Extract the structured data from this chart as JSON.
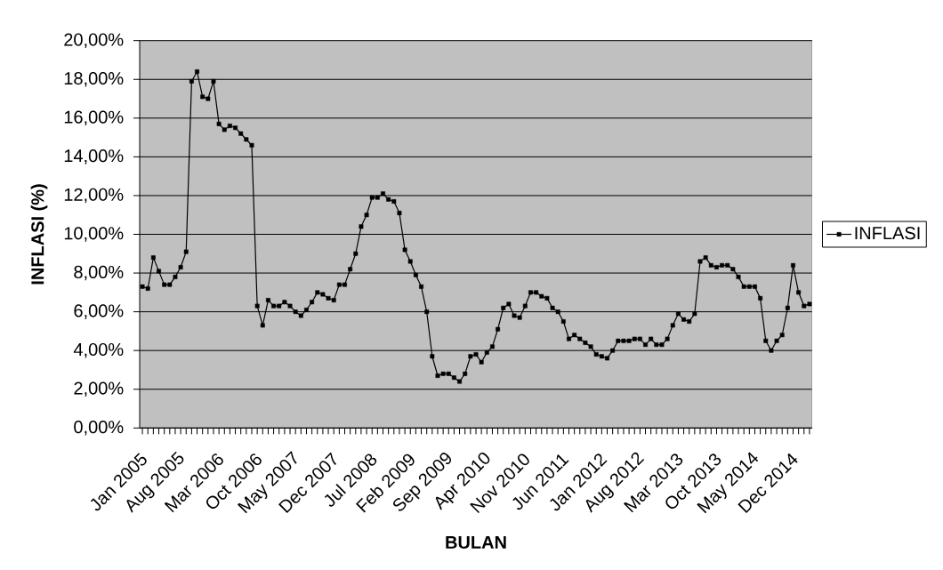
{
  "chart_data": {
    "type": "line",
    "xlabel": "BULAN",
    "ylabel": "INFLASI (%)",
    "categories": [
      "Jan 2005",
      null,
      null,
      null,
      null,
      null,
      null,
      "Aug 2005",
      null,
      null,
      null,
      null,
      null,
      null,
      "Mar 2006",
      null,
      null,
      null,
      null,
      null,
      null,
      "Oct 2006",
      null,
      null,
      null,
      null,
      null,
      null,
      "May 2007",
      null,
      null,
      null,
      null,
      null,
      null,
      "Dec 2007",
      null,
      null,
      null,
      null,
      null,
      null,
      "Jul 2008",
      null,
      null,
      null,
      null,
      null,
      null,
      "Feb 2009",
      null,
      null,
      null,
      null,
      null,
      null,
      "Sep 2009",
      null,
      null,
      null,
      null,
      null,
      null,
      "Apr 2010",
      null,
      null,
      null,
      null,
      null,
      null,
      "Nov 2010",
      null,
      null,
      null,
      null,
      null,
      null,
      "Jun 2011",
      null,
      null,
      null,
      null,
      null,
      null,
      "Jan 2012",
      null,
      null,
      null,
      null,
      null,
      null,
      "Aug 2012",
      null,
      null,
      null,
      null,
      null,
      null,
      "Mar 2013",
      null,
      null,
      null,
      null,
      null,
      null,
      "Oct 2013",
      null,
      null,
      null,
      null,
      null,
      null,
      "May 2014",
      null,
      null,
      null,
      null,
      null,
      null,
      "Dec 2014",
      null,
      null,
      null
    ],
    "series": [
      {
        "name": "INFLASI",
        "color": "#000000",
        "values": [
          7.3,
          7.2,
          8.8,
          8.1,
          7.4,
          7.4,
          7.8,
          8.3,
          9.1,
          17.9,
          18.4,
          17.1,
          17.0,
          17.9,
          15.7,
          15.4,
          15.6,
          15.5,
          15.2,
          14.9,
          14.6,
          6.3,
          5.3,
          6.6,
          6.3,
          6.3,
          6.5,
          6.3,
          6.0,
          5.8,
          6.1,
          6.5,
          7.0,
          6.9,
          6.7,
          6.6,
          7.4,
          7.4,
          8.2,
          9.0,
          10.4,
          11.0,
          11.9,
          11.9,
          12.1,
          11.8,
          11.7,
          11.1,
          9.2,
          8.6,
          7.9,
          7.3,
          6.0,
          3.7,
          2.7,
          2.8,
          2.8,
          2.6,
          2.4,
          2.8,
          3.7,
          3.8,
          3.4,
          3.9,
          4.2,
          5.1,
          6.2,
          6.4,
          5.8,
          5.7,
          6.3,
          7.0,
          7.0,
          6.8,
          6.7,
          6.2,
          6.0,
          5.5,
          4.6,
          4.8,
          4.6,
          4.4,
          4.2,
          3.8,
          3.7,
          3.6,
          4.0,
          4.5,
          4.5,
          4.5,
          4.6,
          4.6,
          4.3,
          4.6,
          4.3,
          4.3,
          4.6,
          5.3,
          5.9,
          5.6,
          5.5,
          5.9,
          8.6,
          8.8,
          8.4,
          8.3,
          8.4,
          8.4,
          8.2,
          7.8,
          7.3,
          7.3,
          7.3,
          6.7,
          4.5,
          4.0,
          4.5,
          4.8,
          6.2,
          8.4,
          7.0,
          6.3,
          6.4
        ]
      }
    ],
    "ylim": [
      0,
      20
    ],
    "yticks": [
      {
        "value": 0,
        "label": "0,00%"
      },
      {
        "value": 2,
        "label": "2,00%"
      },
      {
        "value": 4,
        "label": "4,00%"
      },
      {
        "value": 6,
        "label": "6,00%"
      },
      {
        "value": 8,
        "label": "8,00%"
      },
      {
        "value": 10,
        "label": "10,00%"
      },
      {
        "value": 12,
        "label": "12,00%"
      },
      {
        "value": 14,
        "label": "14,00%"
      },
      {
        "value": 16,
        "label": "16,00%"
      },
      {
        "value": 18,
        "label": "18,00%"
      },
      {
        "value": 20,
        "label": "20,00%"
      }
    ],
    "grid": "y",
    "legend": "right",
    "marker": "square",
    "line_style": "solid"
  }
}
